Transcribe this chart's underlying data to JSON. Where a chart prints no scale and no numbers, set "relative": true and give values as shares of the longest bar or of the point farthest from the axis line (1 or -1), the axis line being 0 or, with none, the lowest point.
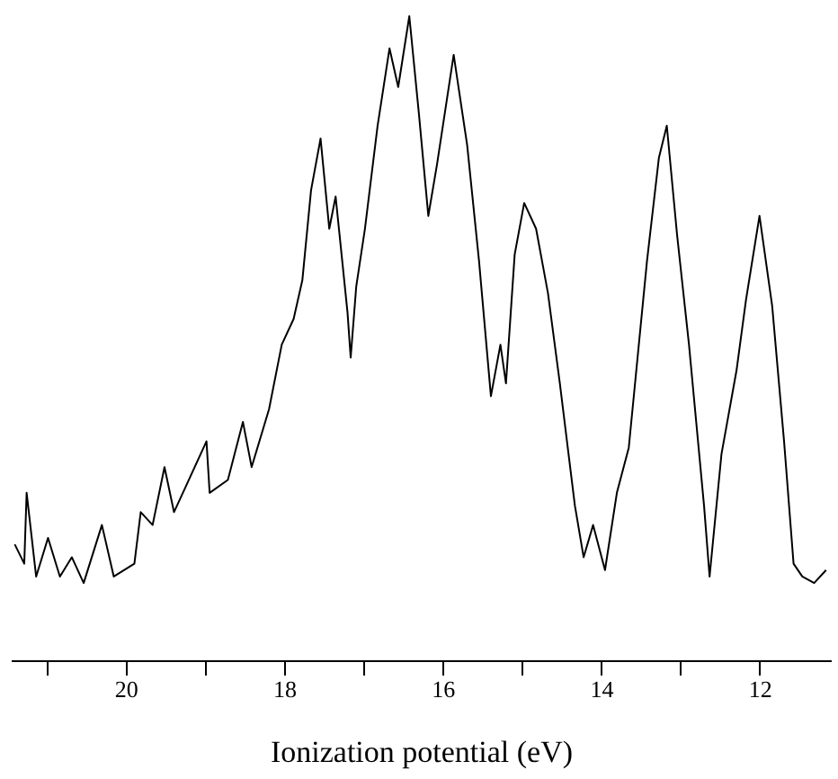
{
  "chart_data": {
    "type": "line",
    "relative": true,
    "xlabel": "Ionization potential (eV)",
    "xlim": [
      21.45,
      11.1
    ],
    "xticks": [
      {
        "value": 21,
        "label": null
      },
      20,
      {
        "value": 19,
        "label": null
      },
      18,
      {
        "value": 17,
        "label": null
      },
      16,
      {
        "value": 15,
        "label": null
      },
      14,
      {
        "value": 13,
        "label": null
      },
      12
    ],
    "grid": false,
    "marker": "none",
    "line_style": "solid",
    "tick_labels": "x",
    "series": [
      {
        "color": "#000000",
        "x": [
          21.4,
          21.28,
          21.25,
          21.13,
          20.98,
          20.83,
          20.68,
          20.53,
          20.3,
          20.15,
          19.89,
          19.81,
          19.66,
          19.51,
          19.39,
          19.24,
          18.98,
          18.94,
          18.71,
          18.52,
          18.41,
          18.19,
          18.03,
          17.88,
          17.77,
          17.66,
          17.54,
          17.43,
          17.35,
          17.2,
          17.16,
          17.09,
          16.98,
          16.82,
          16.67,
          16.56,
          16.42,
          16.3,
          16.18,
          16.07,
          15.86,
          15.69,
          15.54,
          15.39,
          15.27,
          15.2,
          15.09,
          14.97,
          14.82,
          14.67,
          14.52,
          14.33,
          14.22,
          14.1,
          13.95,
          13.8,
          13.65,
          13.42,
          13.27,
          13.17,
          13.04,
          12.89,
          12.7,
          12.63,
          12.48,
          12.29,
          12.17,
          12.0,
          11.84,
          11.69,
          11.57,
          11.46,
          11.31,
          11.16
        ],
        "values": [
          0.18,
          0.15,
          0.26,
          0.13,
          0.19,
          0.13,
          0.16,
          0.12,
          0.21,
          0.13,
          0.15,
          0.23,
          0.21,
          0.3,
          0.23,
          0.27,
          0.34,
          0.26,
          0.28,
          0.37,
          0.3,
          0.39,
          0.49,
          0.53,
          0.59,
          0.73,
          0.81,
          0.67,
          0.72,
          0.54,
          0.47,
          0.58,
          0.67,
          0.83,
          0.95,
          0.89,
          1.0,
          0.85,
          0.69,
          0.77,
          0.94,
          0.8,
          0.62,
          0.41,
          0.49,
          0.43,
          0.63,
          0.71,
          0.67,
          0.57,
          0.43,
          0.24,
          0.16,
          0.21,
          0.14,
          0.26,
          0.33,
          0.62,
          0.78,
          0.83,
          0.66,
          0.49,
          0.24,
          0.13,
          0.32,
          0.45,
          0.56,
          0.69,
          0.55,
          0.34,
          0.15,
          0.13,
          0.12,
          0.14
        ]
      }
    ]
  }
}
